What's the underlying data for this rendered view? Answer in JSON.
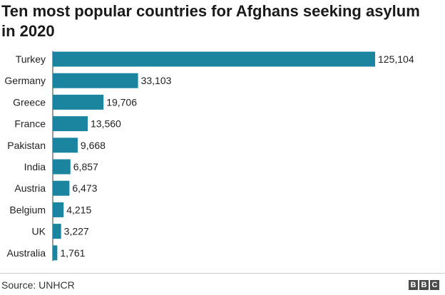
{
  "chart_data": {
    "type": "bar",
    "orientation": "horizontal",
    "title": "Ten most popular countries for Afghans seeking asylum in 2020",
    "categories": [
      "Turkey",
      "Germany",
      "Greece",
      "France",
      "Pakistan",
      "India",
      "Austria",
      "Belgium",
      "UK",
      "Australia"
    ],
    "values": [
      125104,
      33103,
      19706,
      13560,
      9668,
      6857,
      6473,
      4215,
      3227,
      1761
    ],
    "value_labels": [
      "125,104",
      "33,103",
      "19,706",
      "13,560",
      "9,668",
      "6,857",
      "6,473",
      "4,215",
      "3,227",
      "1,761"
    ],
    "xlim": [
      0,
      125104
    ],
    "grid": false,
    "bar_color": "#1b85a0"
  },
  "footer": {
    "source": "Source: UNHCR",
    "logo_letters": [
      "B",
      "B",
      "C"
    ]
  }
}
